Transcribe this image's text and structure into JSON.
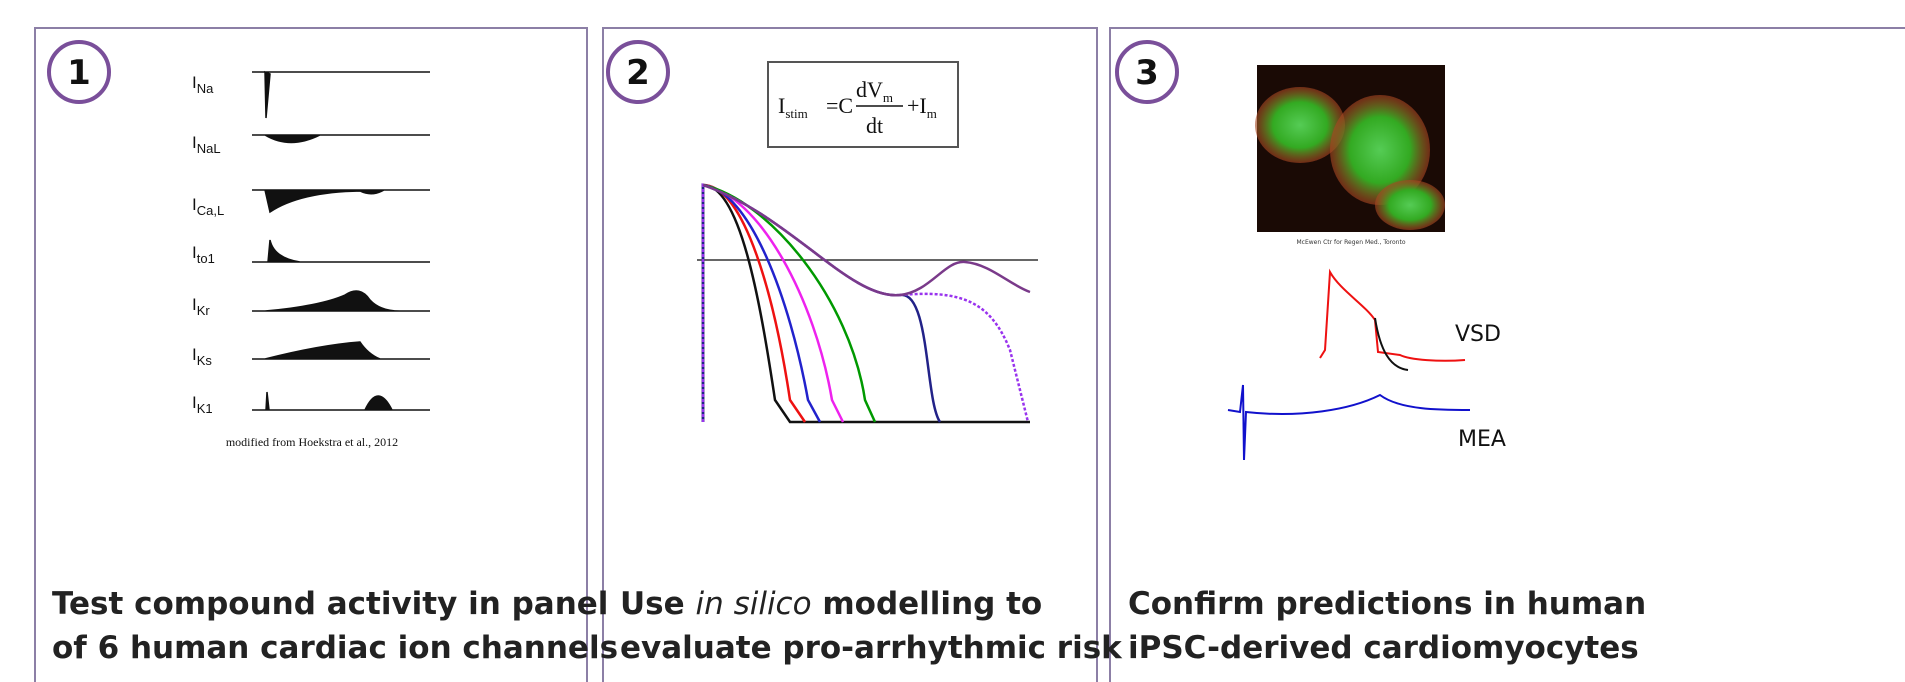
{
  "panels": [
    {
      "number": "1",
      "channels": [
        {
          "symbol": "I",
          "subscript": "Na"
        },
        {
          "symbol": "I",
          "subscript": "NaL"
        },
        {
          "symbol": "I",
          "subscript": "Ca,L"
        },
        {
          "symbol": "I",
          "subscript": "to1"
        },
        {
          "symbol": "I",
          "subscript": "Kr"
        },
        {
          "symbol": "I",
          "subscript": "Ks"
        },
        {
          "symbol": "I",
          "subscript": "K1"
        }
      ],
      "citation": "modified from Hoekstra et al., 2012",
      "caption": [
        "Test compound activity in panel",
        "of 6 human cardiac ion channels"
      ]
    },
    {
      "number": "2",
      "equation": {
        "lhs": "I",
        "lhs_sub": "stim",
        "equals": "=C",
        "numerator": "dV",
        "numerator_sub": "m",
        "denominator": "dt",
        "plus": "+I",
        "plus_sub": "m"
      },
      "caption": [
        {
          "before": "Use ",
          "italic": "in silico",
          "after": " modelling to"
        },
        "evaluate pro-arrhythmic risk"
      ]
    },
    {
      "number": "3",
      "image_caption": "McEwen Ctr for Regen Med., Toronto",
      "labels": [
        "VSD",
        "MEA"
      ],
      "caption": [
        "Confirm predictions in human",
        "iPSC-derived cardiomyocytes"
      ]
    }
  ]
}
